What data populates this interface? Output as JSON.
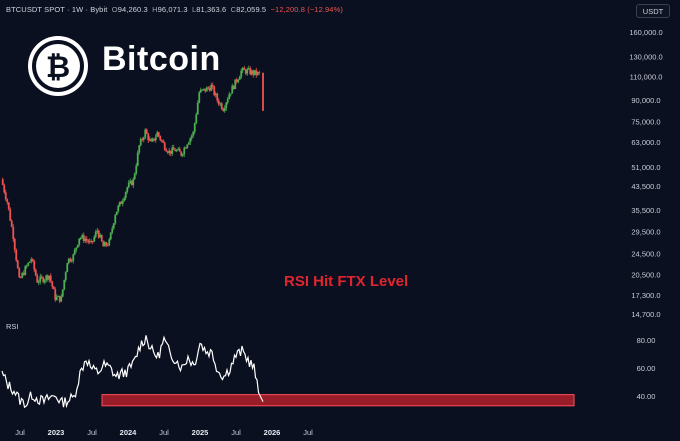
{
  "header": {
    "symbol": "BTCUSDT SPOT · 1W · Bybit",
    "open_key": "O",
    "open": "94,260.3",
    "high_key": "H",
    "high": "96,071.3",
    "low_key": "L",
    "low": "81,363.6",
    "close_key": "C",
    "close": "82,059.5",
    "change": "−12,200.8 (−12.94%)",
    "currency": "USDT"
  },
  "brand": {
    "name": "Bitcoin",
    "symbol": "₿"
  },
  "annotation": "RSI Hit FTX Level",
  "rsi_label": "RSI",
  "colors": {
    "up": "#26a69a",
    "up_bright": "#4caf50",
    "down": "#ef5350",
    "bg": "#0b1020",
    "rsi_band": "#b3202b",
    "annotation": "#e0252f"
  },
  "chart_data": [
    {
      "type": "line",
      "title": "",
      "scale": "log",
      "y_ticks": [
        "160,000.0",
        "130,000.0",
        "110,000.0",
        "90,000.0",
        "75,000.0",
        "63,000.0",
        "51,000.0",
        "43,500.0",
        "35,500.0",
        "29,500.0",
        "24,500.0",
        "20,500.0",
        "17,300.0",
        "14,700.0"
      ],
      "x_ticks": [
        "Jul",
        "2023",
        "Jul",
        "2024",
        "Jul",
        "2025",
        "Jul",
        "2026",
        "Jul"
      ],
      "x": [
        "2022-04",
        "2022-05",
        "2022-06",
        "2022-07",
        "2022-08",
        "2022-09",
        "2022-10",
        "2022-11",
        "2022-12",
        "2023-01",
        "2023-02",
        "2023-03",
        "2023-04",
        "2023-05",
        "2023-06",
        "2023-07",
        "2023-08",
        "2023-09",
        "2023-10",
        "2023-11",
        "2023-12",
        "2024-01",
        "2024-02",
        "2024-03",
        "2024-04",
        "2024-05",
        "2024-06",
        "2024-07",
        "2024-08",
        "2024-09",
        "2024-10",
        "2024-11",
        "2024-12",
        "2025-01",
        "2025-02",
        "2025-03",
        "2025-04",
        "2025-05",
        "2025-06",
        "2025-07",
        "2025-08",
        "2025-09",
        "2025-10",
        "2025-11"
      ],
      "series": [
        {
          "values": [
            46000,
            38000,
            28500,
            19500,
            21500,
            23500,
            19500,
            19800,
            20400,
            16900,
            16700,
            23100,
            24000,
            28200,
            27800,
            26500,
            29900,
            26000,
            27000,
            34500,
            38000,
            43000,
            45500,
            61000,
            69000,
            62000,
            68000,
            62000,
            58000,
            59000,
            57000,
            63000,
            68000,
            96000,
            98000,
            101000,
            90000,
            84000,
            95000,
            104000,
            115000,
            115000,
            113000,
            112000
          ]
        }
      ]
    },
    {
      "type": "line",
      "title": "",
      "name": "RSI",
      "y_ticks": [
        "80.00",
        "60.00",
        "40.00"
      ],
      "band": [
        33,
        41
      ],
      "x": [
        "2022-04",
        "2022-05",
        "2022-06",
        "2022-07",
        "2022-08",
        "2022-09",
        "2022-10",
        "2022-11",
        "2022-12",
        "2023-01",
        "2023-02",
        "2023-03",
        "2023-04",
        "2023-05",
        "2023-06",
        "2023-07",
        "2023-08",
        "2023-09",
        "2023-10",
        "2023-11",
        "2023-12",
        "2024-01",
        "2024-02",
        "2024-03",
        "2024-04",
        "2024-05",
        "2024-06",
        "2024-07",
        "2024-08",
        "2024-09",
        "2024-10",
        "2024-11",
        "2024-12",
        "2025-01",
        "2025-02",
        "2025-03",
        "2025-04",
        "2025-05",
        "2025-06",
        "2025-07",
        "2025-08",
        "2025-09",
        "2025-10",
        "2025-11"
      ],
      "values": [
        56,
        48,
        44,
        37,
        34,
        41,
        38,
        36,
        39,
        40,
        35,
        37,
        39,
        56,
        67,
        59,
        57,
        62,
        60,
        54,
        56,
        58,
        64,
        76,
        82,
        72,
        68,
        80,
        70,
        66,
        60,
        68,
        62,
        78,
        72,
        71,
        58,
        54,
        60,
        69,
        72,
        66,
        60,
        36
      ]
    }
  ]
}
